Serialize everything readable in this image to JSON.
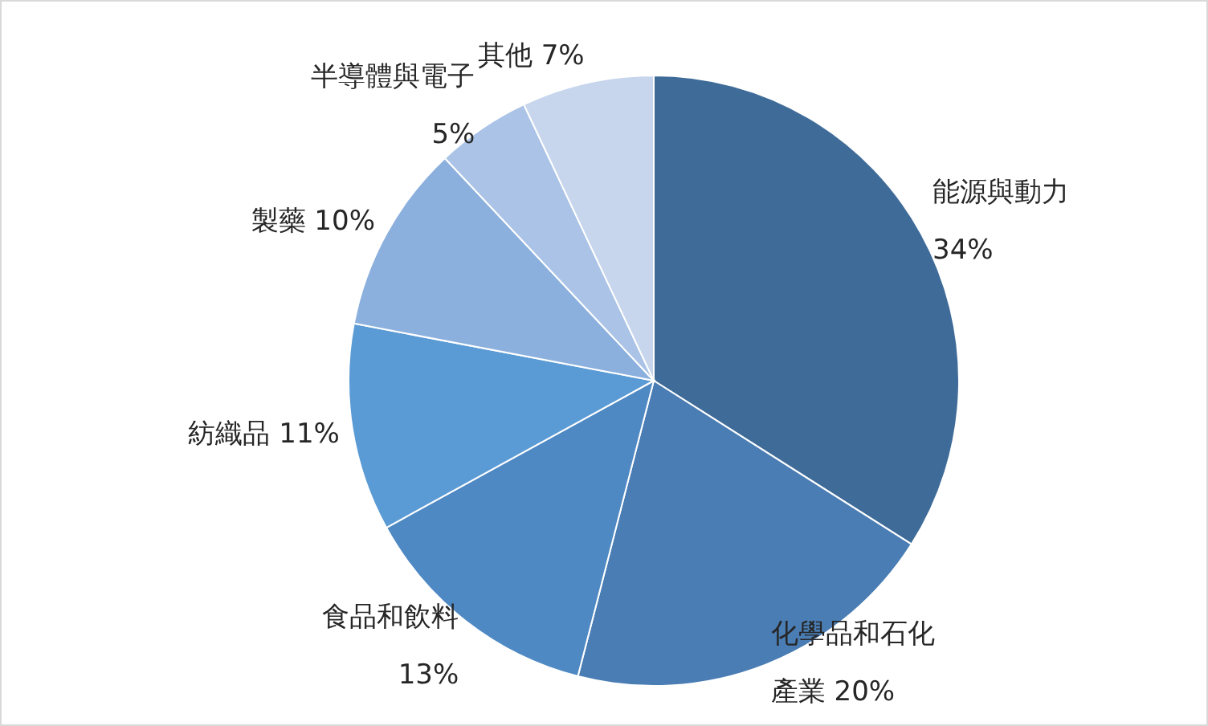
{
  "chart_data": {
    "type": "pie",
    "categories": [
      "能源與動力",
      "化學品和石化產業",
      "食品和飲料",
      "紡織品",
      "製藥",
      "半導體與電子",
      "其他"
    ],
    "values": [
      34,
      20,
      13,
      11,
      10,
      5,
      7
    ],
    "value_labels": [
      "34%",
      "20%",
      "13%",
      "11%",
      "10%",
      "5%",
      "7%"
    ],
    "colors": [
      "#3f6b98",
      "#4a7db4",
      "#4f89c4",
      "#5b9bd5",
      "#8cb0dd",
      "#aac3e6",
      "#c7d6ec"
    ]
  }
}
